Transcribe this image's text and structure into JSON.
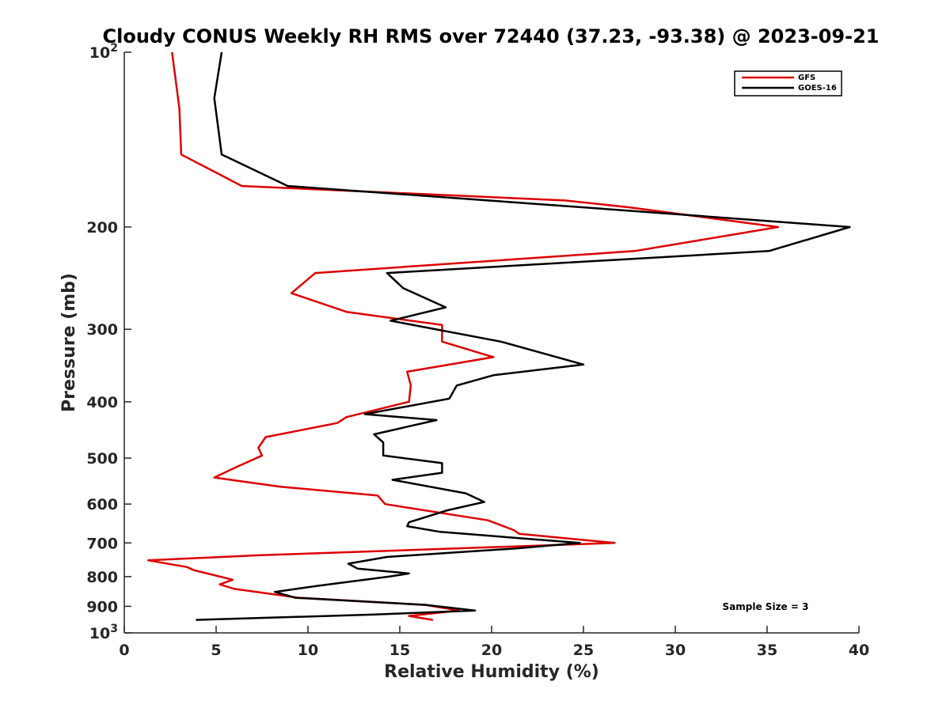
{
  "chart_data": {
    "type": "line",
    "title": "Cloudy CONUS Weekly RH RMS over 72440 (37.23, -93.38) @ 2023-09-21",
    "xlabel": "Relative Humidity (%)",
    "ylabel": "Pressure (mb)",
    "xlim": [
      0,
      40
    ],
    "ylim": [
      100,
      1000
    ],
    "yscale": "log",
    "y_reversed": true,
    "x_ticks": [
      0,
      5,
      10,
      15,
      20,
      25,
      30,
      35,
      40
    ],
    "y_ticks": [
      {
        "value": 100,
        "base": "10",
        "exp": "2"
      },
      {
        "value": 200,
        "label": "200"
      },
      {
        "value": 300,
        "label": "300"
      },
      {
        "value": 400,
        "label": "400"
      },
      {
        "value": 500,
        "label": "500"
      },
      {
        "value": 600,
        "label": "600"
      },
      {
        "value": 700,
        "label": "700"
      },
      {
        "value": 800,
        "label": "800"
      },
      {
        "value": 900,
        "label": "900"
      },
      {
        "value": 1000,
        "base": "10",
        "exp": "3"
      }
    ],
    "grid": false,
    "legend_position": "top-right",
    "annotation": "Sample Size = 3",
    "series": [
      {
        "name": "GFS",
        "color": "#dd0000",
        "points": [
          [
            2.6,
            100
          ],
          [
            3.0,
            125
          ],
          [
            3.1,
            150
          ],
          [
            6.4,
            170
          ],
          [
            24.0,
            180
          ],
          [
            27.5,
            185
          ],
          [
            35.6,
            200
          ],
          [
            27.8,
            220
          ],
          [
            10.4,
            240
          ],
          [
            9.1,
            260
          ],
          [
            12.1,
            280
          ],
          [
            17.3,
            295
          ],
          [
            17.3,
            315
          ],
          [
            20.1,
            335
          ],
          [
            15.4,
            355
          ],
          [
            15.6,
            375
          ],
          [
            15.5,
            400
          ],
          [
            12.1,
            425
          ],
          [
            11.6,
            435
          ],
          [
            7.7,
            460
          ],
          [
            7.3,
            480
          ],
          [
            7.5,
            495
          ],
          [
            6.0,
            520
          ],
          [
            4.9,
            540
          ],
          [
            8.5,
            560
          ],
          [
            13.8,
            580
          ],
          [
            14.2,
            600
          ],
          [
            19.8,
            640
          ],
          [
            21.2,
            665
          ],
          [
            21.5,
            675
          ],
          [
            26.7,
            700
          ],
          [
            7.3,
            735
          ],
          [
            1.3,
            750
          ],
          [
            3.4,
            770
          ],
          [
            3.8,
            780
          ],
          [
            5.9,
            810
          ],
          [
            5.2,
            825
          ],
          [
            6.0,
            840
          ],
          [
            9.5,
            870
          ],
          [
            16.4,
            895
          ],
          [
            18.2,
            915
          ],
          [
            15.5,
            935
          ],
          [
            16.8,
            950
          ]
        ]
      },
      {
        "name": "GOES-16",
        "color": "#000000",
        "points": [
          [
            5.3,
            100
          ],
          [
            4.9,
            120
          ],
          [
            5.3,
            150
          ],
          [
            8.9,
            170
          ],
          [
            25.0,
            185
          ],
          [
            39.5,
            200
          ],
          [
            35.1,
            220
          ],
          [
            14.3,
            240
          ],
          [
            15.2,
            255
          ],
          [
            17.5,
            275
          ],
          [
            14.5,
            290
          ],
          [
            20.5,
            315
          ],
          [
            25.0,
            345
          ],
          [
            20.1,
            360
          ],
          [
            18.1,
            375
          ],
          [
            17.7,
            395
          ],
          [
            13.1,
            420
          ],
          [
            17.0,
            430
          ],
          [
            13.6,
            455
          ],
          [
            14.1,
            470
          ],
          [
            14.1,
            495
          ],
          [
            17.3,
            510
          ],
          [
            17.3,
            530
          ],
          [
            14.6,
            545
          ],
          [
            18.6,
            575
          ],
          [
            19.6,
            595
          ],
          [
            17.6,
            615
          ],
          [
            15.5,
            645
          ],
          [
            15.4,
            655
          ],
          [
            17.2,
            670
          ],
          [
            24.8,
            700
          ],
          [
            21.4,
            715
          ],
          [
            14.3,
            740
          ],
          [
            12.2,
            760
          ],
          [
            12.7,
            775
          ],
          [
            15.5,
            790
          ],
          [
            14.4,
            800
          ],
          [
            10.5,
            830
          ],
          [
            8.2,
            850
          ],
          [
            9.3,
            870
          ],
          [
            16.4,
            895
          ],
          [
            19.1,
            915
          ],
          [
            13.5,
            930
          ],
          [
            3.9,
            950
          ]
        ]
      }
    ]
  }
}
